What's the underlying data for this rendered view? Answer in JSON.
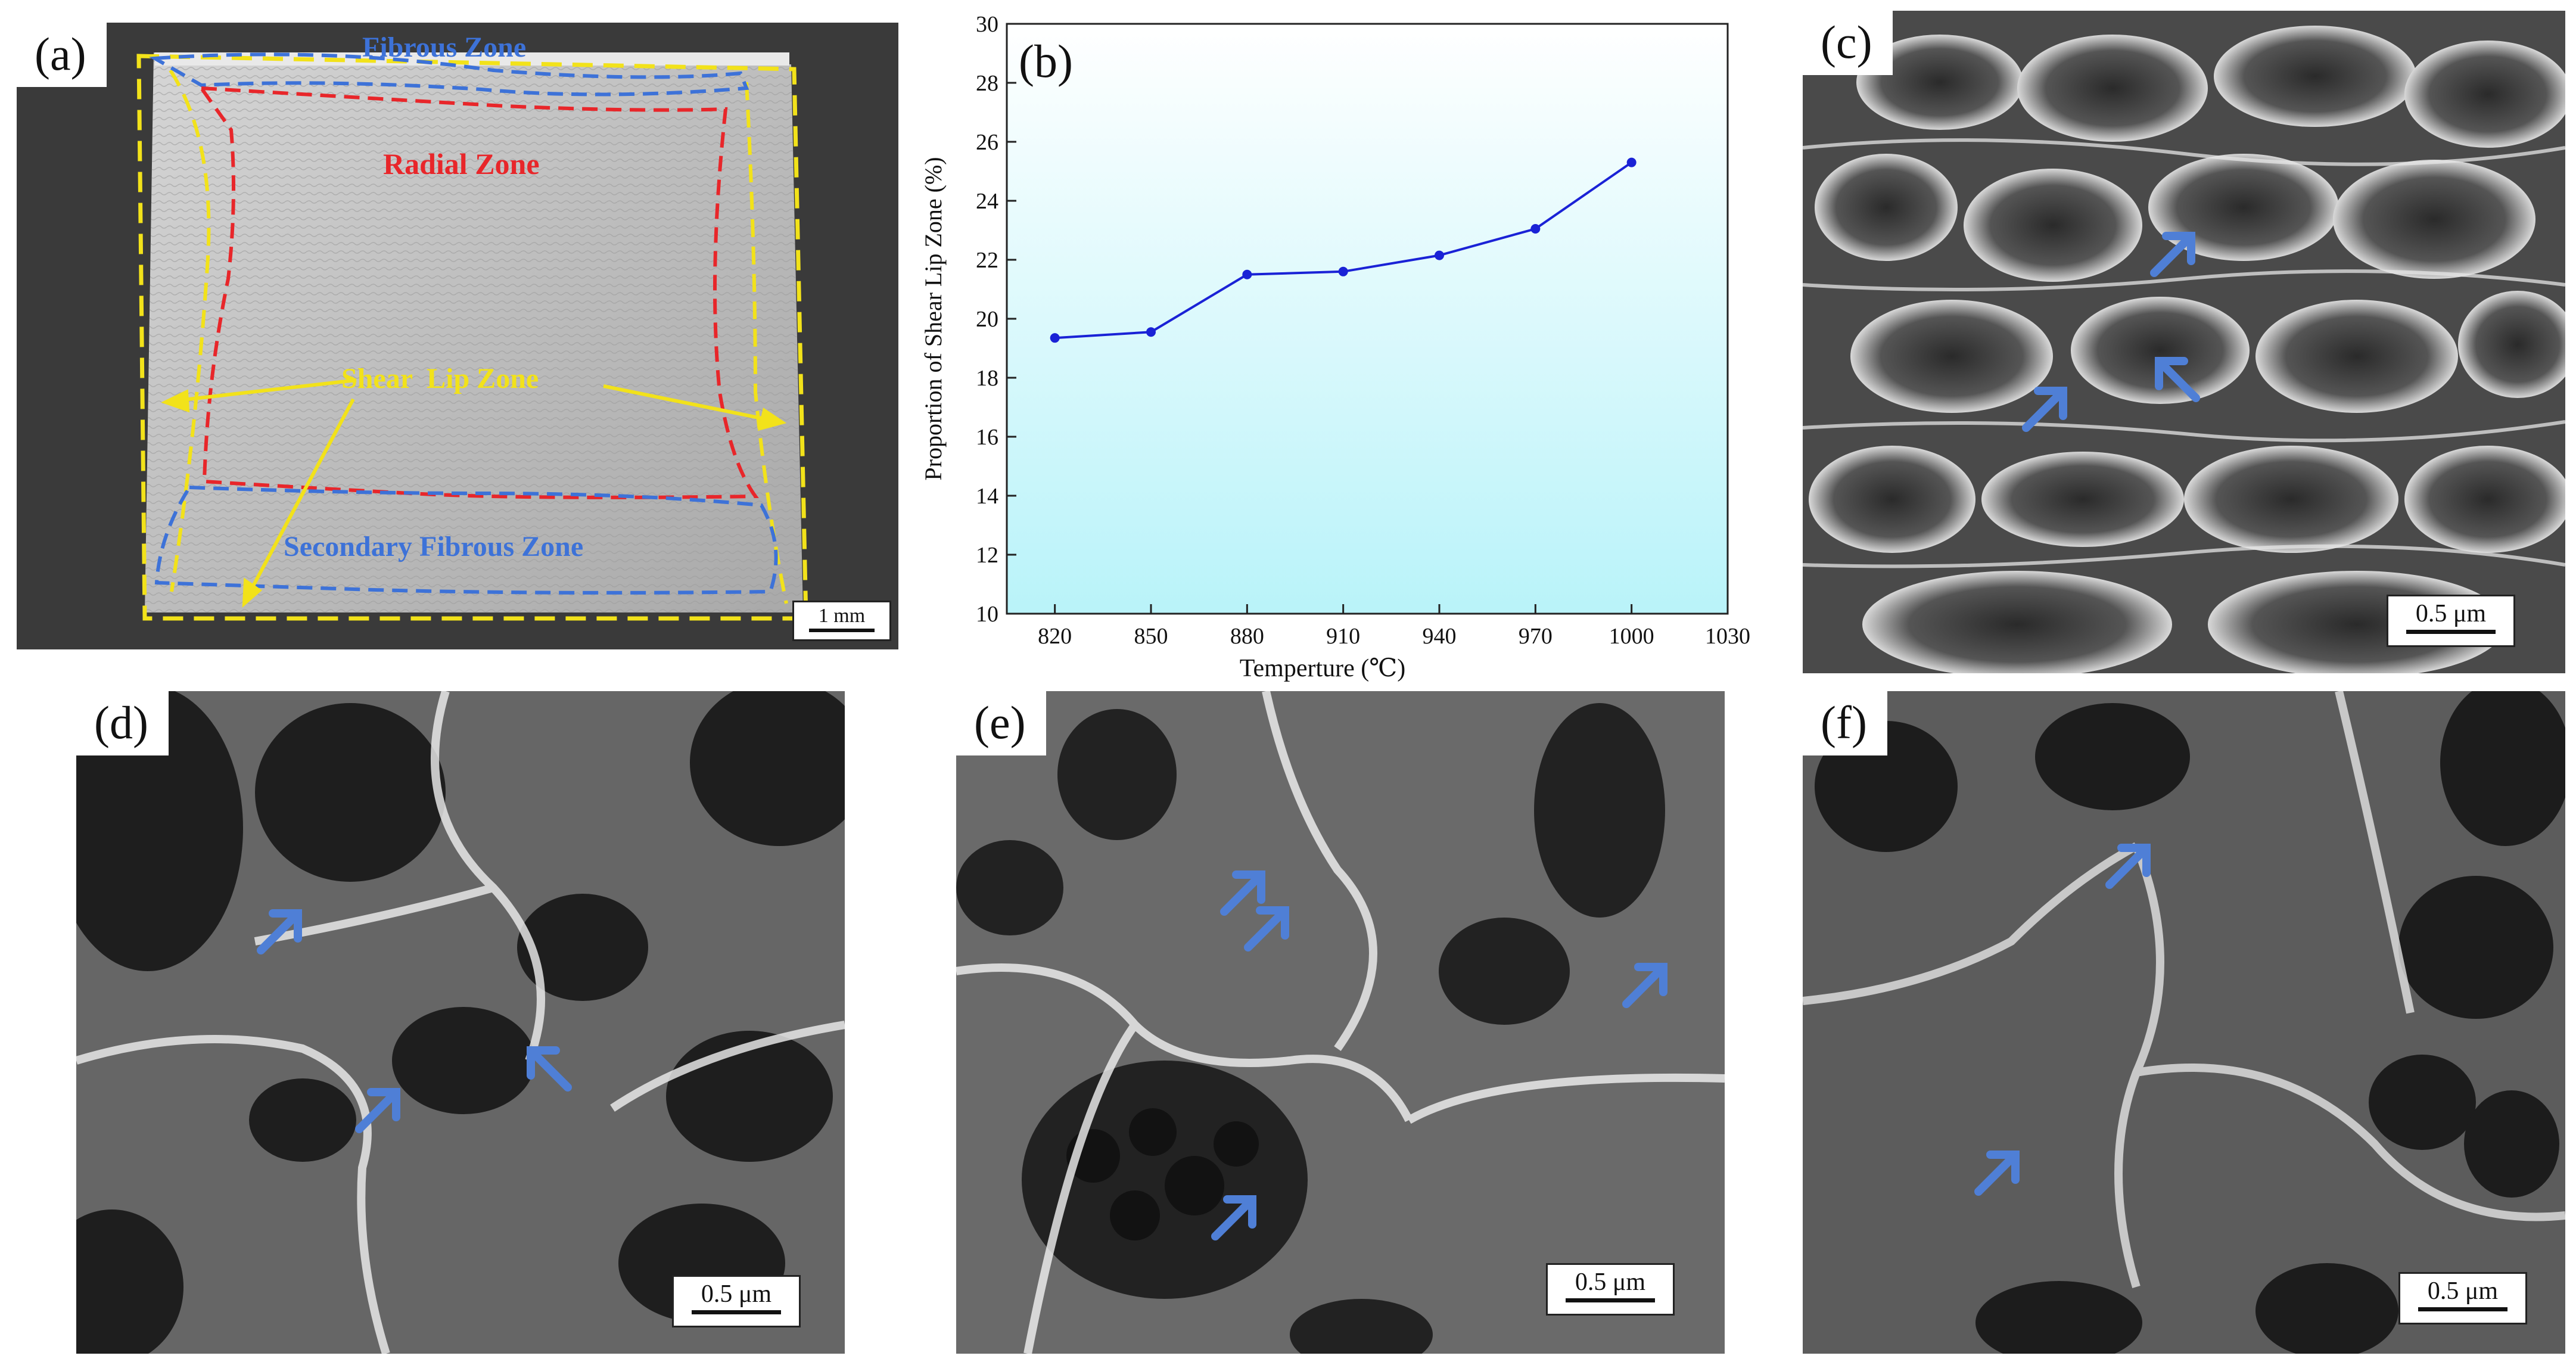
{
  "panels": {
    "a": {
      "label": "(a)",
      "zones": {
        "fibrous": "Fibrous Zone",
        "radial": "Radial Zone",
        "shear_lip": "Shear  Lip Zone",
        "secondary_fibrous": "Secondary Fibrous Zone"
      },
      "scale": "1 mm",
      "colors": {
        "fibrous": "#3d72d8",
        "radial": "#e8262a",
        "shear_lip": "#f2e21a"
      }
    },
    "b": {
      "label": "(b)"
    },
    "c": {
      "label": "(c)",
      "scale": "0.5 μm"
    },
    "d": {
      "label": "(d)",
      "scale": "0.5 μm"
    },
    "e": {
      "label": "(e)",
      "scale": "0.5 μm"
    },
    "f": {
      "label": "(f)",
      "scale": "0.5 μm"
    }
  },
  "arrow_color": "#4f7fd6",
  "chart_data": {
    "type": "line",
    "x": [
      820,
      850,
      880,
      910,
      940,
      970,
      1000
    ],
    "series": [
      {
        "values": [
          19.35,
          19.55,
          21.5,
          21.6,
          22.15,
          23.05,
          25.3
        ],
        "color": "#1a22d6"
      }
    ],
    "xlabel": "Temperture (℃)",
    "ylabel": "Proportion of Shear Lip Zone (%)",
    "xlim": [
      805,
      1030
    ],
    "ylim": [
      10,
      30
    ],
    "xticks": [
      820,
      850,
      880,
      910,
      940,
      970,
      1000,
      1030
    ],
    "yticks": [
      10,
      12,
      14,
      16,
      18,
      20,
      22,
      24,
      26,
      28,
      30
    ],
    "grid": false,
    "background": "gradient white-to-cyan"
  }
}
